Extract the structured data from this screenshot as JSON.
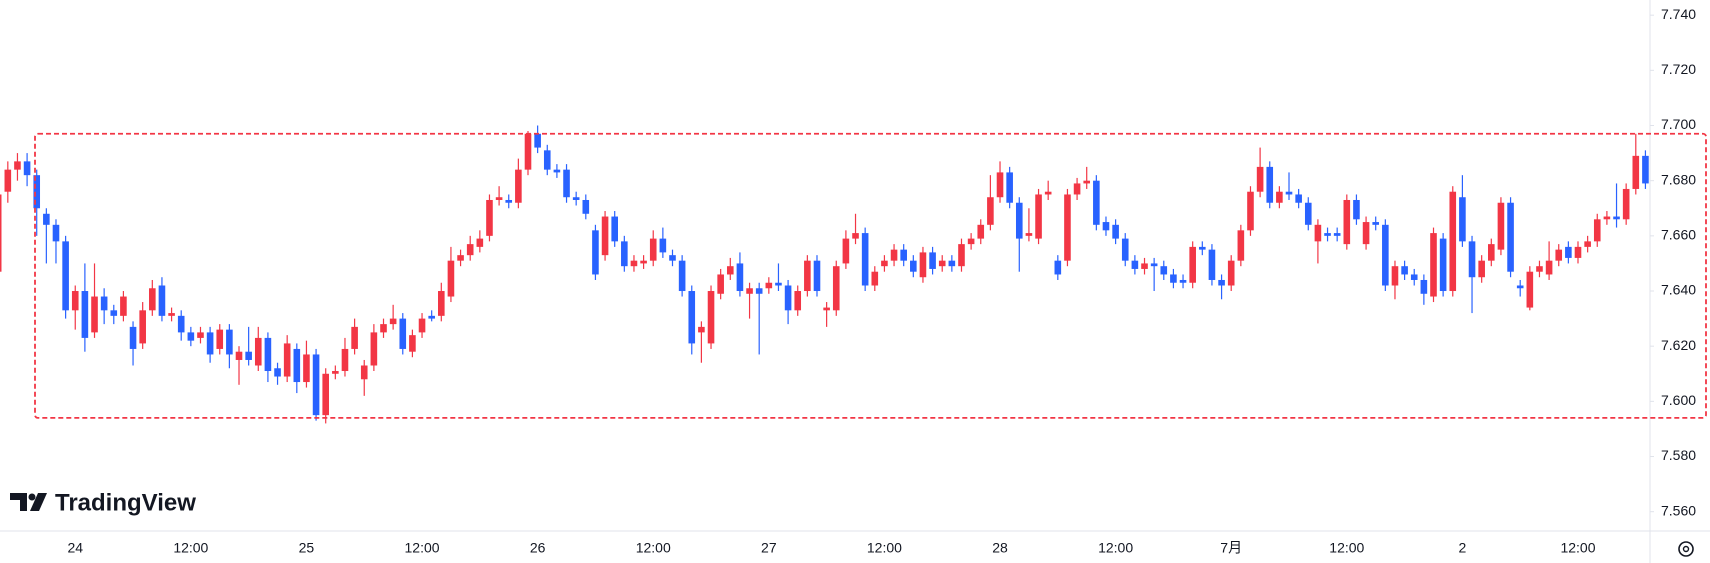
{
  "chart_data": {
    "type": "candlestick",
    "brand": "TradingView",
    "up_color": "#f23645",
    "down_color": "#2962ff",
    "ylim": [
      7.553,
      7.7455
    ],
    "yticks": [
      {
        "value": 7.56,
        "label": "7.560"
      },
      {
        "value": 7.58,
        "label": "7.580"
      },
      {
        "value": 7.6,
        "label": "7.600"
      },
      {
        "value": 7.62,
        "label": "7.620"
      },
      {
        "value": 7.64,
        "label": "7.640"
      },
      {
        "value": 7.66,
        "label": "7.660"
      },
      {
        "value": 7.68,
        "label": "7.680"
      },
      {
        "value": 7.7,
        "label": "7.700"
      },
      {
        "value": 7.72,
        "label": "7.720"
      },
      {
        "value": 7.74,
        "label": "7.740"
      }
    ],
    "range_box": {
      "ylim": [
        7.594,
        7.697
      ],
      "color": "#f23645"
    },
    "categories": [
      null,
      null,
      null,
      null,
      null,
      null,
      null,
      null,
      "24",
      null,
      null,
      null,
      null,
      null,
      null,
      null,
      null,
      null,
      null,
      null,
      "12:00",
      null,
      null,
      null,
      null,
      null,
      null,
      null,
      null,
      null,
      null,
      null,
      "25",
      null,
      null,
      null,
      null,
      null,
      null,
      null,
      null,
      null,
      null,
      null,
      "12:00",
      null,
      null,
      null,
      null,
      null,
      null,
      null,
      null,
      null,
      null,
      null,
      "26",
      null,
      null,
      null,
      null,
      null,
      null,
      null,
      null,
      null,
      null,
      null,
      "12:00",
      null,
      null,
      null,
      null,
      null,
      null,
      null,
      null,
      null,
      null,
      null,
      "27",
      null,
      null,
      null,
      null,
      null,
      null,
      null,
      null,
      null,
      null,
      null,
      "12:00",
      null,
      null,
      null,
      null,
      null,
      null,
      null,
      null,
      null,
      null,
      null,
      "28",
      null,
      null,
      null,
      null,
      null,
      null,
      null,
      null,
      null,
      null,
      null,
      "12:00",
      null,
      null,
      null,
      null,
      null,
      null,
      null,
      null,
      null,
      null,
      null,
      "7月",
      null,
      null,
      null,
      null,
      null,
      null,
      null,
      null,
      null,
      null,
      null,
      "12:00",
      null,
      null,
      null,
      null,
      null,
      null,
      null,
      null,
      null,
      null,
      null,
      "2",
      null,
      null,
      null,
      null,
      null,
      null,
      null,
      null,
      null,
      null,
      null,
      "12:00",
      null,
      null,
      null,
      null,
      null,
      null,
      null
    ],
    "open": [
      7.647,
      7.676,
      7.684,
      7.687,
      7.682,
      7.668,
      7.664,
      7.658,
      7.633,
      7.64,
      7.625,
      7.638,
      7.633,
      7.631,
      7.627,
      7.621,
      7.633,
      7.642,
      7.631,
      7.631,
      7.625,
      7.623,
      7.625,
      7.619,
      7.626,
      7.615,
      7.618,
      7.613,
      7.623,
      7.612,
      7.609,
      7.619,
      7.607,
      7.617,
      7.595,
      7.61,
      7.611,
      7.619,
      7.608,
      7.613,
      7.625,
      7.628,
      7.63,
      7.618,
      7.625,
      7.631,
      7.631,
      7.638,
      7.651,
      7.653,
      7.656,
      7.66,
      7.673,
      7.673,
      7.672,
      7.684,
      7.697,
      7.691,
      7.684,
      7.684,
      7.674,
      7.673,
      7.662,
      7.653,
      7.667,
      7.658,
      7.649,
      7.65,
      7.651,
      7.659,
      7.653,
      7.651,
      7.64,
      7.625,
      7.621,
      7.639,
      7.646,
      7.65,
      7.639,
      7.641,
      7.641,
      7.643,
      7.642,
      7.633,
      7.64,
      7.651,
      7.633,
      7.633,
      7.65,
      7.659,
      7.661,
      7.642,
      7.649,
      7.651,
      7.655,
      7.651,
      7.645,
      7.654,
      7.649,
      7.651,
      7.649,
      7.657,
      7.659,
      7.664,
      7.674,
      7.683,
      7.672,
      7.66,
      7.659,
      7.675,
      7.651,
      7.651,
      7.675,
      7.679,
      7.68,
      7.665,
      7.664,
      7.659,
      7.651,
      7.648,
      7.65,
      7.649,
      7.646,
      7.644,
      7.643,
      7.656,
      7.655,
      7.644,
      7.642,
      7.651,
      7.662,
      7.676,
      7.685,
      7.672,
      7.676,
      7.675,
      7.672,
      7.658,
      7.661,
      7.661,
      7.657,
      7.673,
      7.657,
      7.665,
      7.664,
      7.642,
      7.649,
      7.646,
      7.644,
      7.638,
      7.659,
      7.64,
      7.674,
      7.658,
      7.645,
      7.651,
      7.655,
      7.672,
      7.642,
      7.634,
      7.647,
      7.646,
      7.651,
      7.656,
      7.652,
      7.656,
      7.658,
      7.666,
      7.667,
      7.666,
      7.677,
      7.689
    ],
    "high": [
      7.676,
      7.687,
      7.69,
      7.69,
      7.684,
      7.67,
      7.666,
      7.66,
      7.642,
      7.65,
      7.65,
      7.641,
      7.635,
      7.64,
      7.629,
      7.636,
      7.644,
      7.645,
      7.634,
      7.633,
      7.627,
      7.627,
      7.627,
      7.628,
      7.628,
      7.62,
      7.627,
      7.627,
      7.625,
      7.614,
      7.624,
      7.621,
      7.622,
      7.619,
      7.612,
      7.613,
      7.623,
      7.63,
      7.615,
      7.628,
      7.63,
      7.635,
      7.632,
      7.626,
      7.632,
      7.633,
      7.643,
      7.656,
      7.655,
      7.66,
      7.662,
      7.675,
      7.678,
      7.675,
      7.688,
      7.698,
      7.7,
      7.693,
      7.686,
      7.686,
      7.676,
      7.675,
      7.664,
      7.669,
      7.669,
      7.66,
      7.653,
      7.653,
      7.662,
      7.663,
      7.655,
      7.653,
      7.642,
      7.629,
      7.642,
      7.648,
      7.652,
      7.654,
      7.643,
      7.643,
      7.645,
      7.65,
      7.644,
      7.642,
      7.653,
      7.653,
      7.636,
      7.651,
      7.662,
      7.668,
      7.663,
      7.649,
      7.653,
      7.657,
      7.657,
      7.653,
      7.656,
      7.656,
      7.653,
      7.653,
      7.659,
      7.661,
      7.666,
      7.682,
      7.687,
      7.685,
      7.674,
      7.67,
      7.677,
      7.68,
      7.653,
      7.677,
      7.681,
      7.685,
      7.682,
      7.667,
      7.666,
      7.661,
      7.653,
      7.652,
      7.652,
      7.651,
      7.648,
      7.646,
      7.658,
      7.658,
      7.657,
      7.646,
      7.653,
      7.664,
      7.678,
      7.692,
      7.687,
      7.678,
      7.683,
      7.677,
      7.674,
      7.666,
      7.663,
      7.663,
      7.675,
      7.675,
      7.667,
      7.667,
      7.666,
      7.651,
      7.651,
      7.648,
      7.646,
      7.663,
      7.661,
      7.678,
      7.682,
      7.66,
      7.653,
      7.659,
      7.674,
      7.674,
      7.644,
      7.649,
      7.651,
      7.658,
      7.657,
      7.658,
      7.658,
      7.66,
      7.668,
      7.669,
      7.679,
      7.679,
      7.697,
      7.691
    ],
    "low": [
      7.645,
      7.672,
      7.68,
      7.678,
      7.66,
      7.65,
      7.65,
      7.63,
      7.626,
      7.618,
      7.623,
      7.628,
      7.628,
      7.629,
      7.613,
      7.619,
      7.631,
      7.629,
      7.629,
      7.622,
      7.62,
      7.621,
      7.614,
      7.617,
      7.612,
      7.606,
      7.613,
      7.611,
      7.607,
      7.606,
      7.607,
      7.603,
      7.605,
      7.593,
      7.592,
      7.608,
      7.609,
      7.617,
      7.602,
      7.611,
      7.623,
      7.626,
      7.617,
      7.616,
      7.623,
      7.629,
      7.629,
      7.636,
      7.649,
      7.651,
      7.654,
      7.658,
      7.671,
      7.67,
      7.67,
      7.682,
      7.69,
      7.682,
      7.681,
      7.672,
      7.671,
      7.666,
      7.644,
      7.651,
      7.656,
      7.647,
      7.647,
      7.648,
      7.649,
      7.652,
      7.649,
      7.638,
      7.617,
      7.614,
      7.619,
      7.637,
      7.644,
      7.638,
      7.63,
      7.617,
      7.639,
      7.64,
      7.628,
      7.631,
      7.638,
      7.638,
      7.627,
      7.631,
      7.648,
      7.657,
      7.64,
      7.64,
      7.647,
      7.649,
      7.649,
      7.645,
      7.643,
      7.646,
      7.647,
      7.647,
      7.647,
      7.655,
      7.657,
      7.662,
      7.672,
      7.67,
      7.647,
      7.658,
      7.657,
      7.673,
      7.644,
      7.649,
      7.673,
      7.677,
      7.662,
      7.66,
      7.657,
      7.649,
      7.646,
      7.646,
      7.64,
      7.644,
      7.641,
      7.641,
      7.641,
      7.653,
      7.642,
      7.637,
      7.64,
      7.649,
      7.66,
      7.674,
      7.67,
      7.67,
      7.673,
      7.67,
      7.662,
      7.65,
      7.658,
      7.658,
      7.655,
      7.664,
      7.655,
      7.662,
      7.64,
      7.637,
      7.644,
      7.642,
      7.635,
      7.636,
      7.638,
      7.638,
      7.656,
      7.632,
      7.643,
      7.649,
      7.653,
      7.645,
      7.638,
      7.633,
      7.645,
      7.644,
      7.649,
      7.65,
      7.65,
      7.654,
      7.656,
      7.664,
      7.663,
      7.664,
      7.675,
      7.677
    ],
    "close": [
      7.675,
      7.684,
      7.687,
      7.682,
      7.67,
      7.664,
      7.658,
      7.633,
      7.64,
      7.623,
      7.638,
      7.633,
      7.631,
      7.638,
      7.619,
      7.633,
      7.641,
      7.631,
      7.632,
      7.625,
      7.622,
      7.625,
      7.617,
      7.626,
      7.617,
      7.618,
      7.615,
      7.623,
      7.611,
      7.609,
      7.621,
      7.607,
      7.617,
      7.595,
      7.61,
      7.611,
      7.619,
      7.627,
      7.613,
      7.625,
      7.628,
      7.63,
      7.619,
      7.624,
      7.63,
      7.63,
      7.64,
      7.651,
      7.653,
      7.657,
      7.659,
      7.673,
      7.674,
      7.672,
      7.684,
      7.697,
      7.692,
      7.684,
      7.683,
      7.674,
      7.673,
      7.668,
      7.646,
      7.667,
      7.658,
      7.649,
      7.651,
      7.651,
      7.659,
      7.654,
      7.651,
      7.64,
      7.621,
      7.627,
      7.64,
      7.646,
      7.649,
      7.64,
      7.641,
      7.639,
      7.643,
      7.642,
      7.633,
      7.64,
      7.651,
      7.64,
      7.634,
      7.649,
      7.659,
      7.661,
      7.642,
      7.647,
      7.651,
      7.655,
      7.651,
      7.647,
      7.654,
      7.648,
      7.651,
      7.649,
      7.657,
      7.659,
      7.664,
      7.674,
      7.683,
      7.672,
      7.659,
      7.661,
      7.675,
      7.676,
      7.646,
      7.675,
      7.679,
      7.68,
      7.664,
      7.662,
      7.659,
      7.651,
      7.648,
      7.65,
      7.649,
      7.646,
      7.643,
      7.643,
      7.656,
      7.655,
      7.644,
      7.642,
      7.651,
      7.662,
      7.676,
      7.685,
      7.672,
      7.676,
      7.675,
      7.672,
      7.664,
      7.664,
      7.66,
      7.66,
      7.673,
      7.666,
      7.665,
      7.664,
      7.642,
      7.649,
      7.646,
      7.644,
      7.639,
      7.661,
      7.64,
      7.676,
      7.658,
      7.645,
      7.651,
      7.657,
      7.672,
      7.647,
      7.641,
      7.647,
      7.649,
      7.651,
      7.655,
      7.652,
      7.656,
      7.658,
      7.666,
      7.667,
      7.666,
      7.677,
      7.689,
      7.679
    ]
  }
}
